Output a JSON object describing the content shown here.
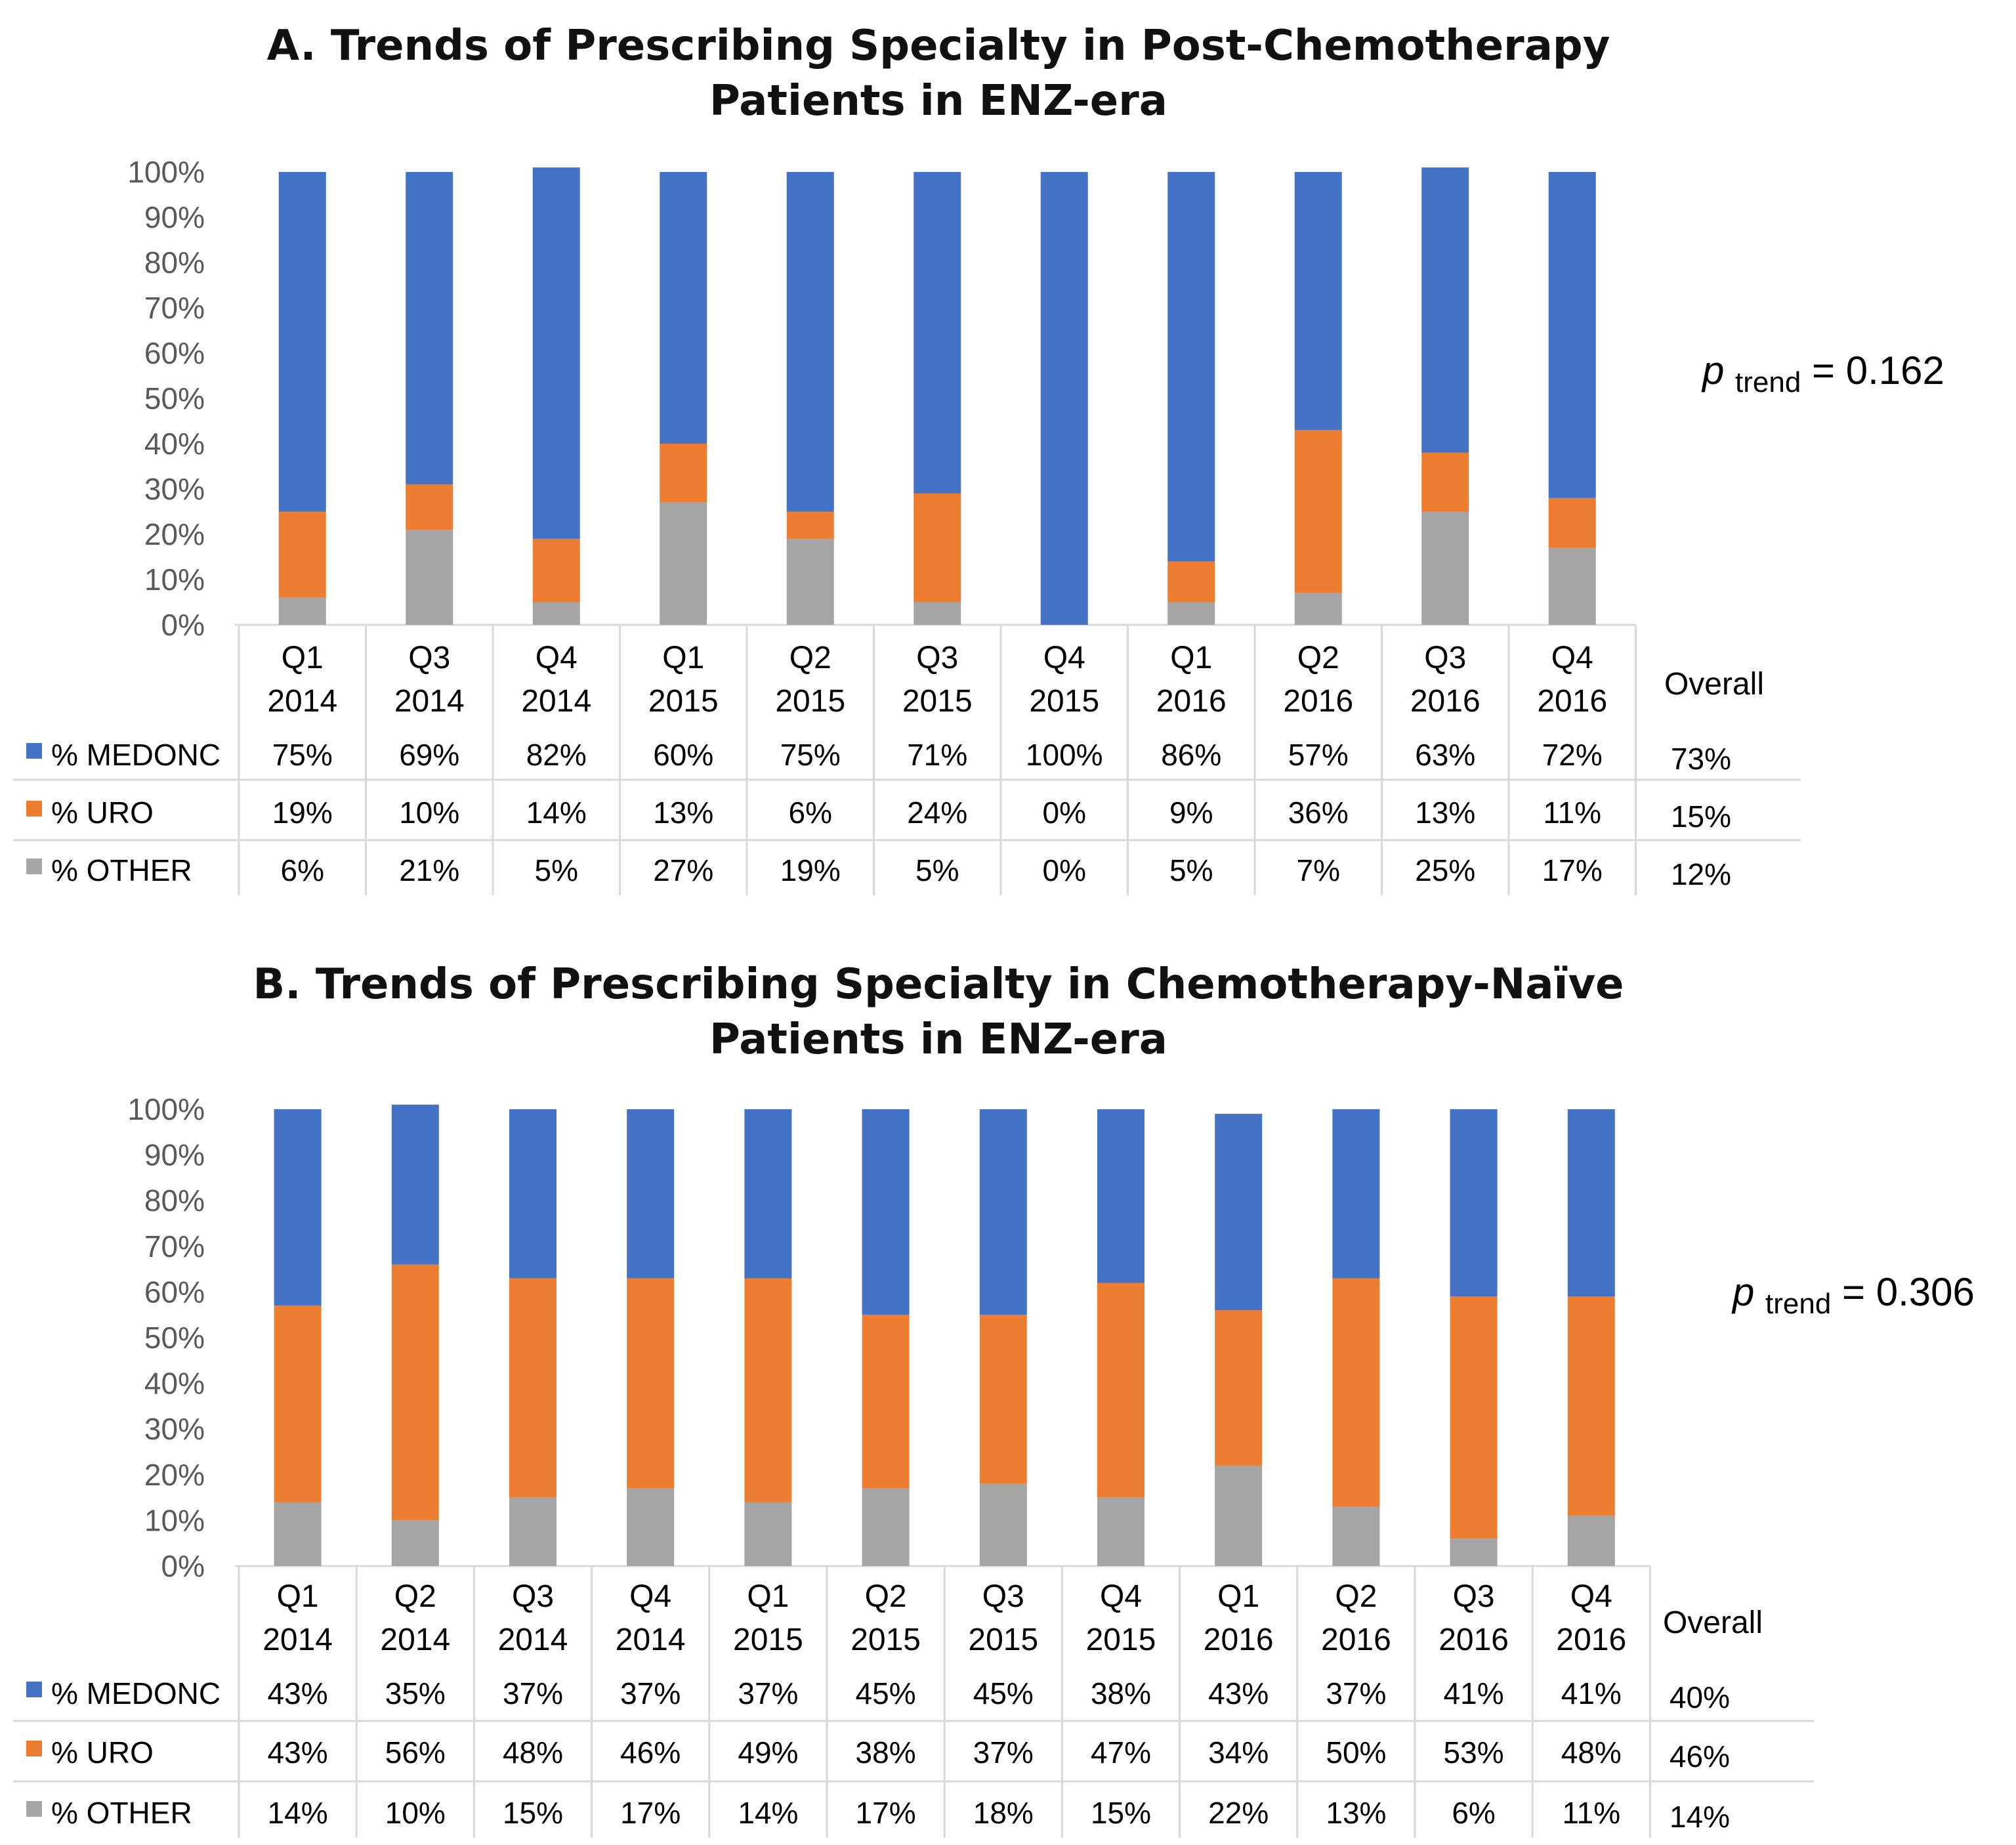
{
  "colors": {
    "medonc": "#4472C4",
    "uro": "#ED7D31",
    "other": "#A5A5A5"
  },
  "chart_data": [
    {
      "type": "bar",
      "stacked": true,
      "title": "A. Trends of Prescribing Specialty in Post-Chemotherapy Patients in ENZ-era",
      "title_lines": [
        "A. Trends of Prescribing Specialty in Post-Chemotherapy",
        "Patients in ENZ-era"
      ],
      "categories": [
        [
          "Q1",
          "2014"
        ],
        [
          "Q3",
          "2014"
        ],
        [
          "Q4",
          "2014"
        ],
        [
          "Q1",
          "2015"
        ],
        [
          "Q2",
          "2015"
        ],
        [
          "Q3",
          "2015"
        ],
        [
          "Q4",
          "2015"
        ],
        [
          "Q1",
          "2016"
        ],
        [
          "Q2",
          "2016"
        ],
        [
          "Q3",
          "2016"
        ],
        [
          "Q4",
          "2016"
        ]
      ],
      "y_ticks": [
        "0%",
        "10%",
        "20%",
        "30%",
        "40%",
        "50%",
        "60%",
        "70%",
        "80%",
        "90%",
        "100%"
      ],
      "ylim": [
        0,
        100
      ],
      "series": [
        {
          "name": "% MEDONC",
          "key": "medonc",
          "values": [
            75,
            69,
            82,
            60,
            75,
            71,
            100,
            86,
            57,
            63,
            72
          ],
          "labels": [
            "75%",
            "69%",
            "82%",
            "60%",
            "75%",
            "71%",
            "100%",
            "86%",
            "57%",
            "63%",
            "72%"
          ],
          "overall": "73%"
        },
        {
          "name": "% URO",
          "key": "uro",
          "values": [
            19,
            10,
            14,
            13,
            6,
            24,
            0,
            9,
            36,
            13,
            11
          ],
          "labels": [
            "19%",
            "10%",
            "14%",
            "13%",
            "6%",
            "24%",
            "0%",
            "9%",
            "36%",
            "13%",
            "11%"
          ],
          "overall": "15%"
        },
        {
          "name": "% OTHER",
          "key": "other",
          "values": [
            6,
            21,
            5,
            27,
            19,
            5,
            0,
            5,
            7,
            25,
            17
          ],
          "labels": [
            "6%",
            "21%",
            "5%",
            "27%",
            "19%",
            "5%",
            "0%",
            "5%",
            "7%",
            "25%",
            "17%"
          ],
          "overall": "12%"
        }
      ],
      "overall_label": "Overall",
      "p_trend": {
        "p": "p",
        "sub": "trend",
        "value": "= 0.162"
      }
    },
    {
      "type": "bar",
      "stacked": true,
      "title": "B. Trends of Prescribing Specialty in Chemotherapy-Naïve Patients in ENZ-era",
      "title_lines": [
        "B. Trends of Prescribing Specialty in Chemotherapy-Naïve",
        "Patients in ENZ-era"
      ],
      "categories": [
        [
          "Q1",
          "2014"
        ],
        [
          "Q2",
          "2014"
        ],
        [
          "Q3",
          "2014"
        ],
        [
          "Q4",
          "2014"
        ],
        [
          "Q1",
          "2015"
        ],
        [
          "Q2",
          "2015"
        ],
        [
          "Q3",
          "2015"
        ],
        [
          "Q4",
          "2015"
        ],
        [
          "Q1",
          "2016"
        ],
        [
          "Q2",
          "2016"
        ],
        [
          "Q3",
          "2016"
        ],
        [
          "Q4",
          "2016"
        ]
      ],
      "y_ticks": [
        "0%",
        "10%",
        "20%",
        "30%",
        "40%",
        "50%",
        "60%",
        "70%",
        "80%",
        "90%",
        "100%"
      ],
      "ylim": [
        0,
        100
      ],
      "series": [
        {
          "name": "% MEDONC",
          "key": "medonc",
          "values": [
            43,
            35,
            37,
            37,
            37,
            45,
            45,
            38,
            43,
            37,
            41,
            41
          ],
          "labels": [
            "43%",
            "35%",
            "37%",
            "37%",
            "37%",
            "45%",
            "45%",
            "38%",
            "43%",
            "37%",
            "41%",
            "41%"
          ],
          "overall": "40%"
        },
        {
          "name": "% URO",
          "key": "uro",
          "values": [
            43,
            56,
            48,
            46,
            49,
            38,
            37,
            47,
            34,
            50,
            53,
            48
          ],
          "labels": [
            "43%",
            "56%",
            "48%",
            "46%",
            "49%",
            "38%",
            "37%",
            "47%",
            "34%",
            "50%",
            "53%",
            "48%"
          ],
          "overall": "46%"
        },
        {
          "name": "% OTHER",
          "key": "other",
          "values": [
            14,
            10,
            15,
            17,
            14,
            17,
            18,
            15,
            22,
            13,
            6,
            11
          ],
          "labels": [
            "14%",
            "10%",
            "15%",
            "17%",
            "14%",
            "17%",
            "18%",
            "15%",
            "22%",
            "13%",
            "6%",
            "11%"
          ],
          "overall": "14%"
        }
      ],
      "overall_label": "Overall",
      "p_trend": {
        "p": "p",
        "sub": "trend",
        "value": "= 0.306"
      }
    }
  ]
}
